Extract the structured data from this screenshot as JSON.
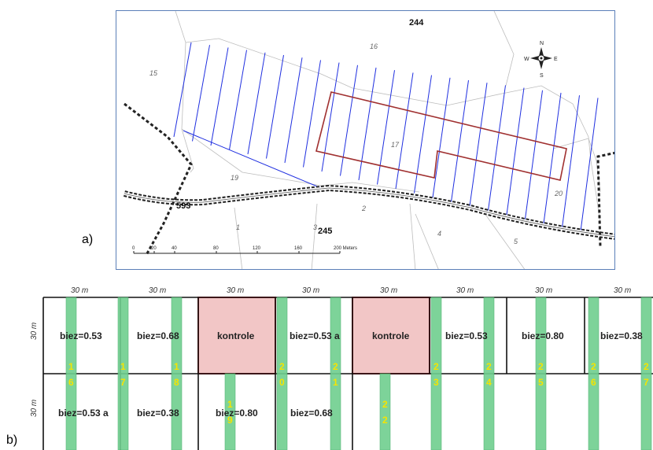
{
  "panel_a": {
    "label": "a)",
    "parcel_numbers": [
      "244",
      "16",
      "15",
      "17",
      "19",
      "20",
      "593",
      "245",
      "1",
      "3",
      "2",
      "4",
      "5"
    ],
    "compass": {
      "n": "N",
      "s": "S",
      "e": "E",
      "w": "W"
    },
    "scale_bar": {
      "ticks": [
        "0",
        "20",
        "40",
        "80",
        "120",
        "160",
        "200 Meters"
      ]
    },
    "colors": {
      "strips": "#1f2fe0",
      "control_outline": "#a03030",
      "road": "#222222"
    }
  },
  "panel_b": {
    "label": "b)",
    "width_label": "30 m",
    "height_label": "30 m",
    "top_row": [
      "biez=0.53",
      "biez=0.68",
      "kontrole",
      "biez=0.53 a",
      "kontrole",
      "biez=0.53",
      "biez=0.80",
      "biez=0.38"
    ],
    "bottom_row": [
      "biez=0.53 a",
      "biez=0.38",
      "biez=0.80",
      "biez=0.68"
    ],
    "strip_numbers": [
      {
        "top": "1",
        "bottom": "6"
      },
      {
        "top": "1",
        "bottom": "7"
      },
      {
        "top": "1",
        "bottom": "8"
      },
      {
        "top": "1",
        "bottom": "9"
      },
      {
        "top": "2",
        "bottom": "0"
      },
      {
        "top": "2",
        "bottom": "1"
      },
      {
        "top": "2",
        "bottom": "2"
      },
      {
        "top": "2",
        "bottom": "3"
      },
      {
        "top": "2",
        "bottom": "4"
      },
      {
        "top": "2",
        "bottom": "5"
      },
      {
        "top": "2",
        "bottom": "6"
      },
      {
        "top": "2",
        "bottom": "7"
      }
    ],
    "colors": {
      "strip_fill": "#6fcf8f",
      "control_fill": "#f2c6c6",
      "control_border": "#c0262d"
    }
  }
}
